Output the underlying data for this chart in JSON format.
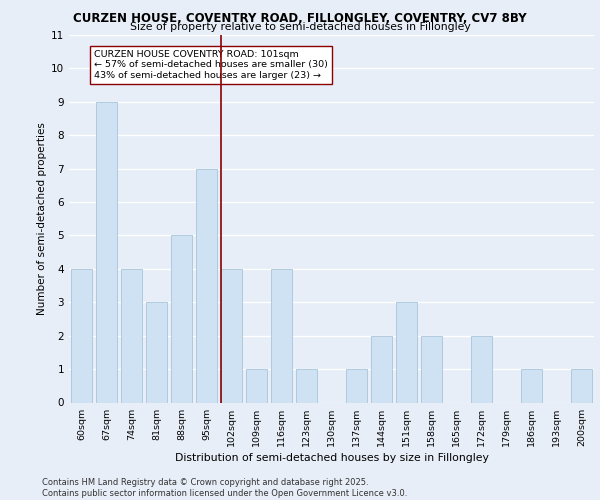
{
  "title1": "CURZEN HOUSE, COVENTRY ROAD, FILLONGLEY, COVENTRY, CV7 8BY",
  "title2": "Size of property relative to semi-detached houses in Fillongley",
  "xlabel": "Distribution of semi-detached houses by size in Fillongley",
  "ylabel": "Number of semi-detached properties",
  "categories": [
    "60sqm",
    "67sqm",
    "74sqm",
    "81sqm",
    "88sqm",
    "95sqm",
    "102sqm",
    "109sqm",
    "116sqm",
    "123sqm",
    "130sqm",
    "137sqm",
    "144sqm",
    "151sqm",
    "158sqm",
    "165sqm",
    "172sqm",
    "179sqm",
    "186sqm",
    "193sqm",
    "200sqm"
  ],
  "values": [
    4,
    9,
    4,
    3,
    5,
    7,
    4,
    1,
    4,
    1,
    0,
    1,
    2,
    3,
    2,
    0,
    2,
    0,
    1,
    0,
    1
  ],
  "bar_color": "#cfe2f3",
  "bar_edge_color": "#a8c4d8",
  "vline_color": "#8b0000",
  "vline_index": 6,
  "annotation_text": "CURZEN HOUSE COVENTRY ROAD: 101sqm\n← 57% of semi-detached houses are smaller (30)\n43% of semi-detached houses are larger (23) →",
  "annotation_box_color": "#ffffff",
  "annotation_box_edge": "#8b0000",
  "ylim": [
    0,
    11
  ],
  "yticks": [
    0,
    1,
    2,
    3,
    4,
    5,
    6,
    7,
    8,
    9,
    10,
    11
  ],
  "background_color": "#e8eef7",
  "grid_color": "#ffffff",
  "footer": "Contains HM Land Registry data © Crown copyright and database right 2025.\nContains public sector information licensed under the Open Government Licence v3.0."
}
